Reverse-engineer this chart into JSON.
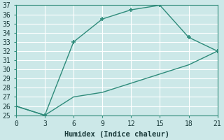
{
  "line1_x": [
    0,
    3,
    6,
    9,
    12,
    15,
    18,
    21
  ],
  "line1_y": [
    26,
    25,
    33,
    35.5,
    36.5,
    37,
    33.5,
    32
  ],
  "line2_x": [
    0,
    3,
    6,
    9,
    12,
    15,
    18,
    21
  ],
  "line2_y": [
    26,
    25,
    27,
    27.5,
    28.5,
    29.5,
    30.5,
    32
  ],
  "line_color": "#2e8b7a",
  "bg_color": "#cce8e8",
  "grid_color": "#b0d4d4",
  "axis_color": "#2e8b7a",
  "xlabel": "Humidex (Indice chaleur)",
  "xlim": [
    0,
    21
  ],
  "ylim": [
    25,
    37
  ],
  "xticks": [
    0,
    3,
    6,
    9,
    12,
    15,
    18,
    21
  ],
  "yticks": [
    25,
    26,
    27,
    28,
    29,
    30,
    31,
    32,
    33,
    34,
    35,
    36,
    37
  ],
  "label_fontsize": 7.5,
  "tick_fontsize": 7
}
